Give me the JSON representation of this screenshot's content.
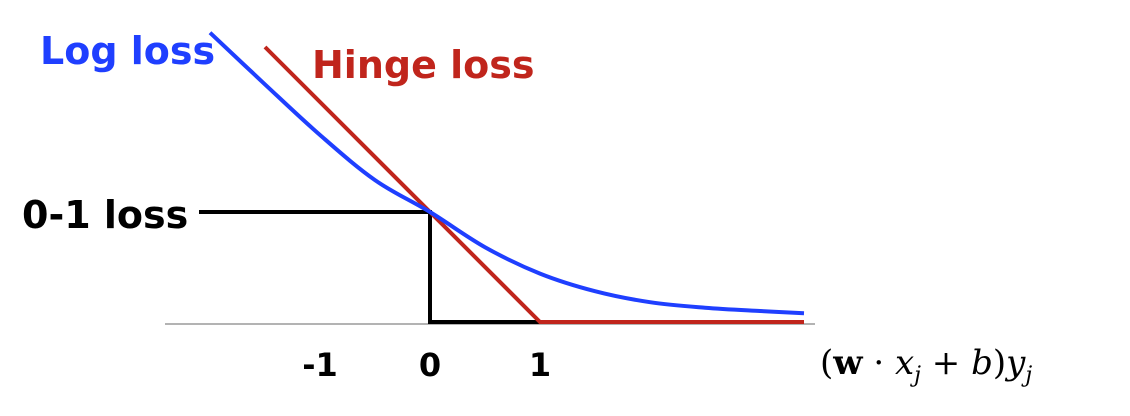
{
  "chart_data": {
    "type": "line",
    "x_range": [
      -2.35,
      3.5
    ],
    "y_range": [
      0,
      2.9
    ],
    "x_ticks": [
      "-1",
      "0",
      "1"
    ],
    "x_tick_values": [
      -1,
      0,
      1
    ],
    "xlabel": "(w · x_j + b)y_j",
    "xlabel_parts": {
      "open": "(",
      "w": "w",
      "dot": " · ",
      "x": "x",
      "x_sub": "j",
      "plus": " + ",
      "b": "b",
      "close": ")",
      "y": "y",
      "y_sub": "j"
    },
    "grid": false,
    "series": [
      {
        "name": "Log loss",
        "color": "#1f3fff",
        "points": [
          [
            -2.0,
            2.63
          ],
          [
            -1.5,
            2.16
          ],
          [
            -1.0,
            1.7
          ],
          [
            -0.5,
            1.29
          ],
          [
            0.0,
            1.0
          ],
          [
            0.5,
            0.68
          ],
          [
            1.0,
            0.44
          ],
          [
            1.5,
            0.28
          ],
          [
            2.0,
            0.18
          ],
          [
            2.5,
            0.13
          ],
          [
            3.0,
            0.1
          ],
          [
            3.4,
            0.08
          ]
        ]
      },
      {
        "name": "Hinge loss",
        "color": "#c0251c",
        "points": [
          [
            -1.5,
            2.5
          ],
          [
            1.0,
            0.0
          ],
          [
            3.4,
            0.0
          ]
        ]
      },
      {
        "name": "0-1 loss",
        "color": "#000000",
        "points": [
          [
            -2.1,
            1.0
          ],
          [
            0.0,
            1.0
          ],
          [
            0.0,
            0.0
          ],
          [
            3.4,
            0.0
          ]
        ]
      }
    ]
  }
}
